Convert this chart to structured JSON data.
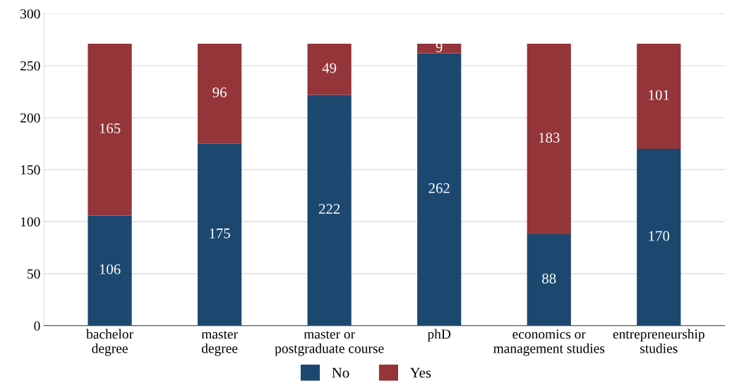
{
  "chart_data": {
    "type": "bar",
    "stacked": true,
    "categories": [
      "bachelor\ndegree",
      "master\ndegree",
      "master or\npostgraduate course",
      "phD",
      "economics or\nmanagement studies",
      "entrepreneurship\nstudies"
    ],
    "series": [
      {
        "name": "No",
        "color": "#1c4870",
        "values": [
          106,
          175,
          222,
          262,
          88,
          170
        ]
      },
      {
        "name": "Yes",
        "color": "#943539",
        "values": [
          165,
          96,
          49,
          9,
          183,
          101
        ]
      }
    ],
    "ylim": [
      0,
      300
    ],
    "yticks": [
      0,
      50,
      100,
      150,
      200,
      250,
      300
    ],
    "grid": "y",
    "legend": "bottom",
    "data_labels": true
  }
}
